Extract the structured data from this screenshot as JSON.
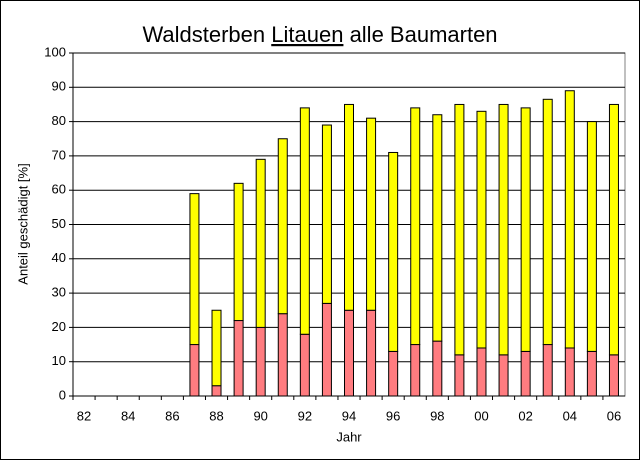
{
  "chart_data": {
    "type": "stacked_bar",
    "title": [
      "Waldsterben",
      "Litauen",
      "alle Baumarten"
    ],
    "x_label": "Jahr",
    "y_label": "Anteil geschädigt [%]",
    "categories": [
      "82",
      null,
      "84",
      null,
      "86",
      null,
      "88",
      null,
      "90",
      null,
      "92",
      null,
      "94",
      null,
      "96",
      null,
      "98",
      null,
      "00",
      null,
      "02",
      null,
      "04",
      null,
      "06"
    ],
    "series": [
      {
        "color": "#ff7c80",
        "values": [
          null,
          null,
          null,
          null,
          null,
          15,
          3,
          22,
          20,
          24,
          18,
          27,
          25,
          25,
          13,
          15,
          16,
          12,
          14,
          12,
          13,
          15,
          14,
          13,
          12
        ]
      },
      {
        "color": "#ffff00",
        "values": [
          null,
          null,
          null,
          null,
          null,
          44,
          22,
          40,
          49,
          51,
          66,
          52,
          60,
          56,
          58,
          69,
          66,
          73,
          69,
          73,
          71,
          71.5,
          75,
          67,
          73
        ]
      }
    ],
    "ylim": [
      0,
      100
    ],
    "yticks": [
      0,
      10,
      20,
      30,
      40,
      50,
      60,
      70,
      80,
      90,
      100
    ],
    "grid": true
  }
}
